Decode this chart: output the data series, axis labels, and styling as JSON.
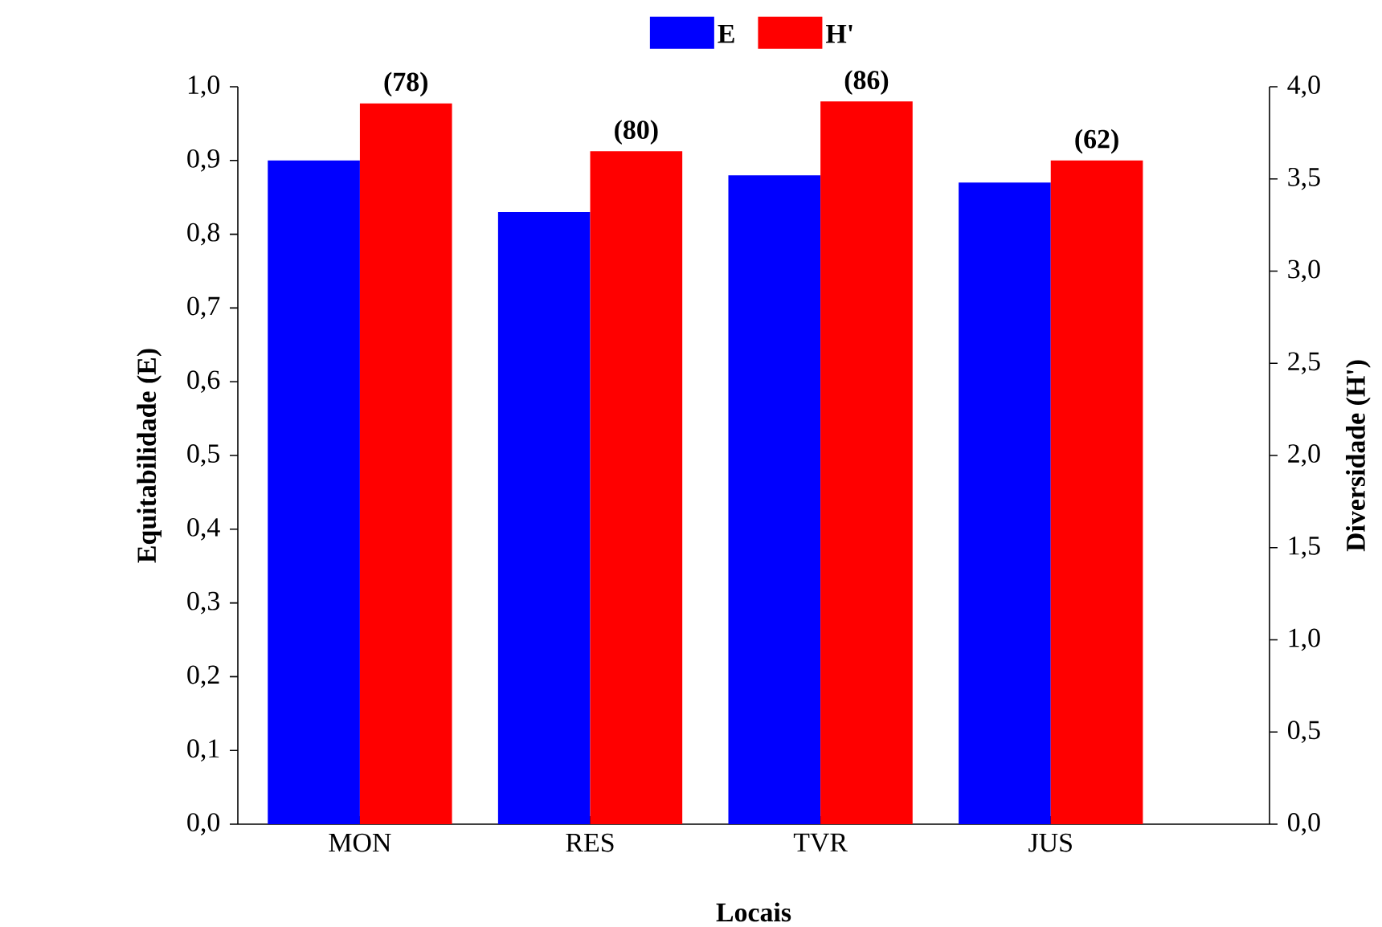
{
  "chart_data": {
    "type": "bar",
    "xlabel": "Locais",
    "ylabel": "Equitabilidade (E)",
    "y2label": "Diversidade (H')",
    "categories": [
      "MON",
      "RES",
      "TVR",
      "JUS"
    ],
    "series": [
      {
        "name": "E",
        "color": "#0000ff",
        "values": [
          0.9,
          0.83,
          0.88,
          0.87
        ]
      },
      {
        "name": "H'",
        "color": "#ff0000",
        "axis": "y2",
        "values": [
          3.91,
          3.65,
          3.92,
          3.6
        ]
      }
    ],
    "ylim": [
      0,
      1.0
    ],
    "yticks": [
      {
        "value": 0,
        "label": "0,0"
      },
      {
        "value": 0.1,
        "label": "0,1"
      },
      {
        "value": 0.2,
        "label": "0,2"
      },
      {
        "value": 0.3,
        "label": "0,3"
      },
      {
        "value": 0.4,
        "label": "0,4"
      },
      {
        "value": 0.5,
        "label": "0,5"
      },
      {
        "value": 0.6,
        "label": "0,6"
      },
      {
        "value": 0.7,
        "label": "0,7"
      },
      {
        "value": 0.8,
        "label": "0,8"
      },
      {
        "value": 0.9,
        "label": "0,9"
      },
      {
        "value": 1.0,
        "label": "1,0"
      }
    ],
    "y2lim": [
      0,
      4.0
    ],
    "y2ticks": [
      {
        "value": 0,
        "label": "0,0"
      },
      {
        "value": 0.5,
        "label": "0,5"
      },
      {
        "value": 1.0,
        "label": "1,0"
      },
      {
        "value": 1.5,
        "label": "1,5"
      },
      {
        "value": 2.0,
        "label": "2,0"
      },
      {
        "value": 2.5,
        "label": "2,5"
      },
      {
        "value": 3.0,
        "label": "3,0"
      },
      {
        "value": 3.5,
        "label": "3,5"
      },
      {
        "value": 4.0,
        "label": "4,0"
      }
    ],
    "annotations": [
      "(78)",
      "(80)",
      "(86)",
      "(62)"
    ],
    "legend": "top"
  }
}
